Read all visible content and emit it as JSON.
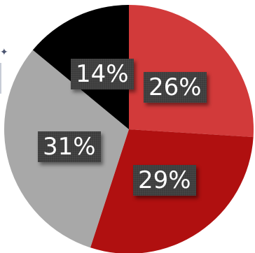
{
  "chart_data": {
    "type": "pie",
    "title": "",
    "slices": [
      {
        "label": "26%",
        "value": 26,
        "color": "#d23a3a"
      },
      {
        "label": "29%",
        "value": 29,
        "color": "#b01010"
      },
      {
        "label": "31%",
        "value": 31,
        "color": "#a8a8a8"
      },
      {
        "label": "14%",
        "value": 14,
        "color": "#000000"
      }
    ],
    "start_angle_deg": 0,
    "direction": "clockwise",
    "legend": "none"
  },
  "decor": {
    "corner_icon": "star-icon",
    "corner_glyph": "✦"
  }
}
